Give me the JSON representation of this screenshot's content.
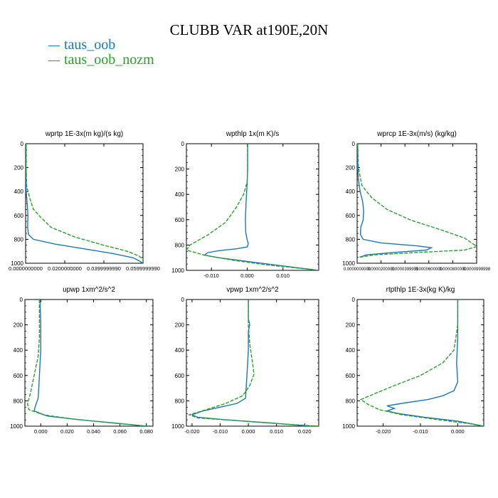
{
  "figure": {
    "title": "CLUBB VAR at190E,20N",
    "legend": [
      {
        "label": "taus_oob",
        "color": "#1f77b4"
      },
      {
        "label": "taus_oob_nozm",
        "color": "#2ca02c"
      }
    ]
  },
  "chart_data": [
    {
      "type": "line",
      "title": "wprtp  1E-3x(m kg)/(s kg)",
      "xlim": [
        0,
        0.06
      ],
      "ylim": [
        0,
        1000
      ],
      "y_inverted": true,
      "xticks": [
        0,
        0.02,
        0.04,
        0.06
      ],
      "xtick_labels": [
        "0.0000000000",
        "0.0200000000",
        "0.0399999990",
        "0.0599999990"
      ],
      "yticks": [
        0,
        200,
        400,
        600,
        800,
        1000
      ],
      "series": [
        {
          "name": "taus_oob",
          "color": "#1f77b4",
          "x": [
            0.0003,
            0.0002,
            0.0003,
            0.0008,
            0.0012,
            0.001,
            0.0015,
            0.004,
            0.015,
            0.03,
            0.045,
            0.055,
            0.058,
            0.06
          ],
          "y": [
            0,
            200,
            400,
            500,
            600,
            700,
            760,
            800,
            840,
            880,
            920,
            955,
            980,
            1000
          ]
        },
        {
          "name": "taus_oob_nozm",
          "color": "#2ca02c",
          "x": [
            0.0003,
            0.0003,
            0.0005,
            0.002,
            0.004,
            0.008,
            0.013,
            0.025,
            0.04,
            0.052,
            0.058,
            0.06,
            0.06
          ],
          "y": [
            0,
            200,
            350,
            450,
            550,
            620,
            700,
            780,
            850,
            900,
            940,
            970,
            1000
          ]
        }
      ]
    },
    {
      "type": "line",
      "title": "wpthlp  1x(m K)/s",
      "xlim": [
        -0.017,
        0.02
      ],
      "ylim": [
        0,
        1000
      ],
      "y_inverted": true,
      "xticks": [
        -0.01,
        0,
        0.01
      ],
      "xtick_labels": [
        "-0.010",
        "0.000",
        "0.010"
      ],
      "yticks": [
        0,
        200,
        400,
        600,
        800,
        1000
      ],
      "series": [
        {
          "name": "taus_oob",
          "color": "#1f77b4",
          "x": [
            0.0001,
            0.0001,
            0.0,
            -0.0003,
            -0.0005,
            -0.0004,
            0.0,
            0.0003,
            0.0,
            -0.003,
            -0.008,
            -0.011,
            -0.012,
            -0.008,
            0.0,
            0.01,
            0.02
          ],
          "y": [
            0,
            200,
            300,
            450,
            600,
            700,
            760,
            790,
            815,
            830,
            845,
            860,
            880,
            900,
            930,
            965,
            1000
          ]
        },
        {
          "name": "taus_oob_nozm",
          "color": "#2ca02c",
          "x": [
            0.0001,
            0.0001,
            0.0,
            -0.001,
            -0.003,
            -0.006,
            -0.011,
            -0.016,
            -0.017,
            -0.012,
            -0.004,
            0.005,
            0.015,
            0.02
          ],
          "y": [
            0,
            200,
            300,
            400,
            500,
            620,
            720,
            800,
            840,
            880,
            920,
            955,
            985,
            1000
          ]
        }
      ]
    },
    {
      "type": "line",
      "title": "wprcp  1E-3x(m/s) (kg/kg)",
      "xlim": [
        0,
        0.0001
      ],
      "ylim": [
        0,
        1000
      ],
      "y_inverted": true,
      "xticks": [
        0,
        2e-05,
        4e-05,
        6e-05,
        8e-05,
        0.0001
      ],
      "xtick_labels": [
        "0.0000000000",
        "0.0000200000",
        "0.0000399999",
        "0.0000600000",
        "0.0000800000",
        "0.0000999998"
      ],
      "yticks": [
        0,
        200,
        400,
        600,
        800,
        1000
      ],
      "series": [
        {
          "name": "taus_oob",
          "color": "#1f77b4",
          "x": [
            5e-07,
            5e-07,
            1e-06,
            2.5e-06,
            4.5e-06,
            5.5e-06,
            5e-06,
            3e-06,
            2.8e-06,
            5e-06,
            2e-05,
            5e-05,
            6.2e-05,
            5.8e-05,
            3e-05,
            8e-06,
            2e-06
          ],
          "y": [
            0,
            200,
            300,
            400,
            480,
            560,
            640,
            700,
            760,
            800,
            830,
            855,
            870,
            890,
            910,
            930,
            950
          ]
        },
        {
          "name": "taus_oob_nozm",
          "color": "#2ca02c",
          "x": [
            5e-07,
            1e-06,
            4e-06,
            1.2e-05,
            2.5e-05,
            4.5e-05,
            7e-05,
            9e-05,
            0.0001,
            9e-05,
            5e-05,
            1.5e-05,
            2e-06
          ],
          "y": [
            0,
            200,
            350,
            450,
            550,
            640,
            720,
            790,
            860,
            890,
            910,
            930,
            950
          ]
        }
      ]
    },
    {
      "type": "line",
      "title": "upwp   1xm^2/s^2",
      "xlim": [
        -0.012,
        0.085
      ],
      "ylim": [
        0,
        1000
      ],
      "y_inverted": true,
      "xticks": [
        0,
        0.02,
        0.04,
        0.06,
        0.08
      ],
      "xtick_labels": [
        "0.000",
        "0.020",
        "0.040",
        "0.060",
        "0.080"
      ],
      "yticks": [
        0,
        200,
        400,
        600,
        800,
        1000
      ],
      "series": [
        {
          "name": "taus_oob",
          "color": "#1f77b4",
          "x": [
            -0.0005,
            0.0,
            0.0,
            -0.0005,
            -0.001,
            -0.0015,
            -0.002,
            -0.004,
            -0.005,
            0.005,
            0.03,
            0.055,
            0.075,
            0.08
          ],
          "y": [
            0,
            200,
            400,
            500,
            600,
            700,
            780,
            840,
            880,
            920,
            950,
            975,
            995,
            1000
          ]
        },
        {
          "name": "taus_oob_nozm",
          "color": "#2ca02c",
          "x": [
            -0.001,
            -0.001,
            -0.002,
            -0.004,
            -0.006,
            -0.008,
            -0.01,
            -0.009,
            0.002,
            0.025,
            0.055,
            0.08
          ],
          "y": [
            0,
            300,
            450,
            550,
            650,
            750,
            820,
            870,
            910,
            945,
            975,
            1000
          ]
        }
      ]
    },
    {
      "type": "line",
      "title": "vpwp   1xm^2/s^2",
      "xlim": [
        -0.022,
        0.025
      ],
      "ylim": [
        0,
        1000
      ],
      "y_inverted": true,
      "xticks": [
        -0.02,
        -0.01,
        0,
        0.01,
        0.02
      ],
      "xtick_labels": [
        "-0.020",
        "-0.010",
        "0.000",
        "0.010",
        "0.020"
      ],
      "yticks": [
        0,
        200,
        400,
        600,
        800,
        1000
      ],
      "series": [
        {
          "name": "taus_oob",
          "color": "#1f77b4",
          "x": [
            0.0,
            0.0,
            0.0005,
            0.0,
            0.0,
            -0.0005,
            -0.001,
            -0.004,
            -0.01,
            -0.016,
            -0.02,
            -0.018,
            -0.008,
            0.008,
            0.022
          ],
          "y": [
            0,
            150,
            200,
            250,
            400,
            600,
            780,
            820,
            850,
            880,
            910,
            930,
            950,
            975,
            1000
          ]
        },
        {
          "name": "taus_oob_nozm",
          "color": "#2ca02c",
          "x": [
            0.0,
            0.0,
            0.0005,
            0.0015,
            0.002,
            0.0005,
            -0.002,
            -0.008,
            -0.015,
            -0.021,
            -0.018,
            -0.005,
            0.01,
            0.025
          ],
          "y": [
            0,
            200,
            350,
            500,
            590,
            680,
            760,
            820,
            870,
            910,
            935,
            955,
            980,
            1000
          ]
        }
      ]
    },
    {
      "type": "line",
      "title": "rtpthlp  1E-3x(kg K)/kg",
      "xlim": [
        -0.027,
        0.007
      ],
      "ylim": [
        0,
        1000
      ],
      "y_inverted": true,
      "xticks": [
        -0.02,
        -0.01,
        0
      ],
      "xtick_labels": [
        "-0.020",
        "-0.010",
        "0.000"
      ],
      "yticks": [
        0,
        200,
        400,
        600,
        800,
        1000
      ],
      "series": [
        {
          "name": "taus_oob",
          "color": "#1f77b4",
          "x": [
            0.0,
            0.0,
            -0.0003,
            0.0,
            -0.001,
            -0.004,
            -0.008,
            -0.015,
            -0.019,
            -0.017,
            -0.019,
            -0.016,
            -0.009,
            0.0,
            0.007
          ],
          "y": [
            0,
            300,
            500,
            650,
            720,
            760,
            790,
            820,
            840,
            860,
            880,
            900,
            930,
            960,
            1000
          ]
        },
        {
          "name": "taus_oob_nozm",
          "color": "#2ca02c",
          "x": [
            0.0,
            0.0,
            -0.001,
            -0.004,
            -0.01,
            -0.017,
            -0.022,
            -0.026,
            -0.024,
            -0.021,
            -0.015,
            -0.005,
            0.003,
            0.007
          ],
          "y": [
            0,
            200,
            400,
            500,
            600,
            680,
            740,
            790,
            830,
            870,
            910,
            950,
            980,
            1000
          ]
        }
      ]
    }
  ]
}
